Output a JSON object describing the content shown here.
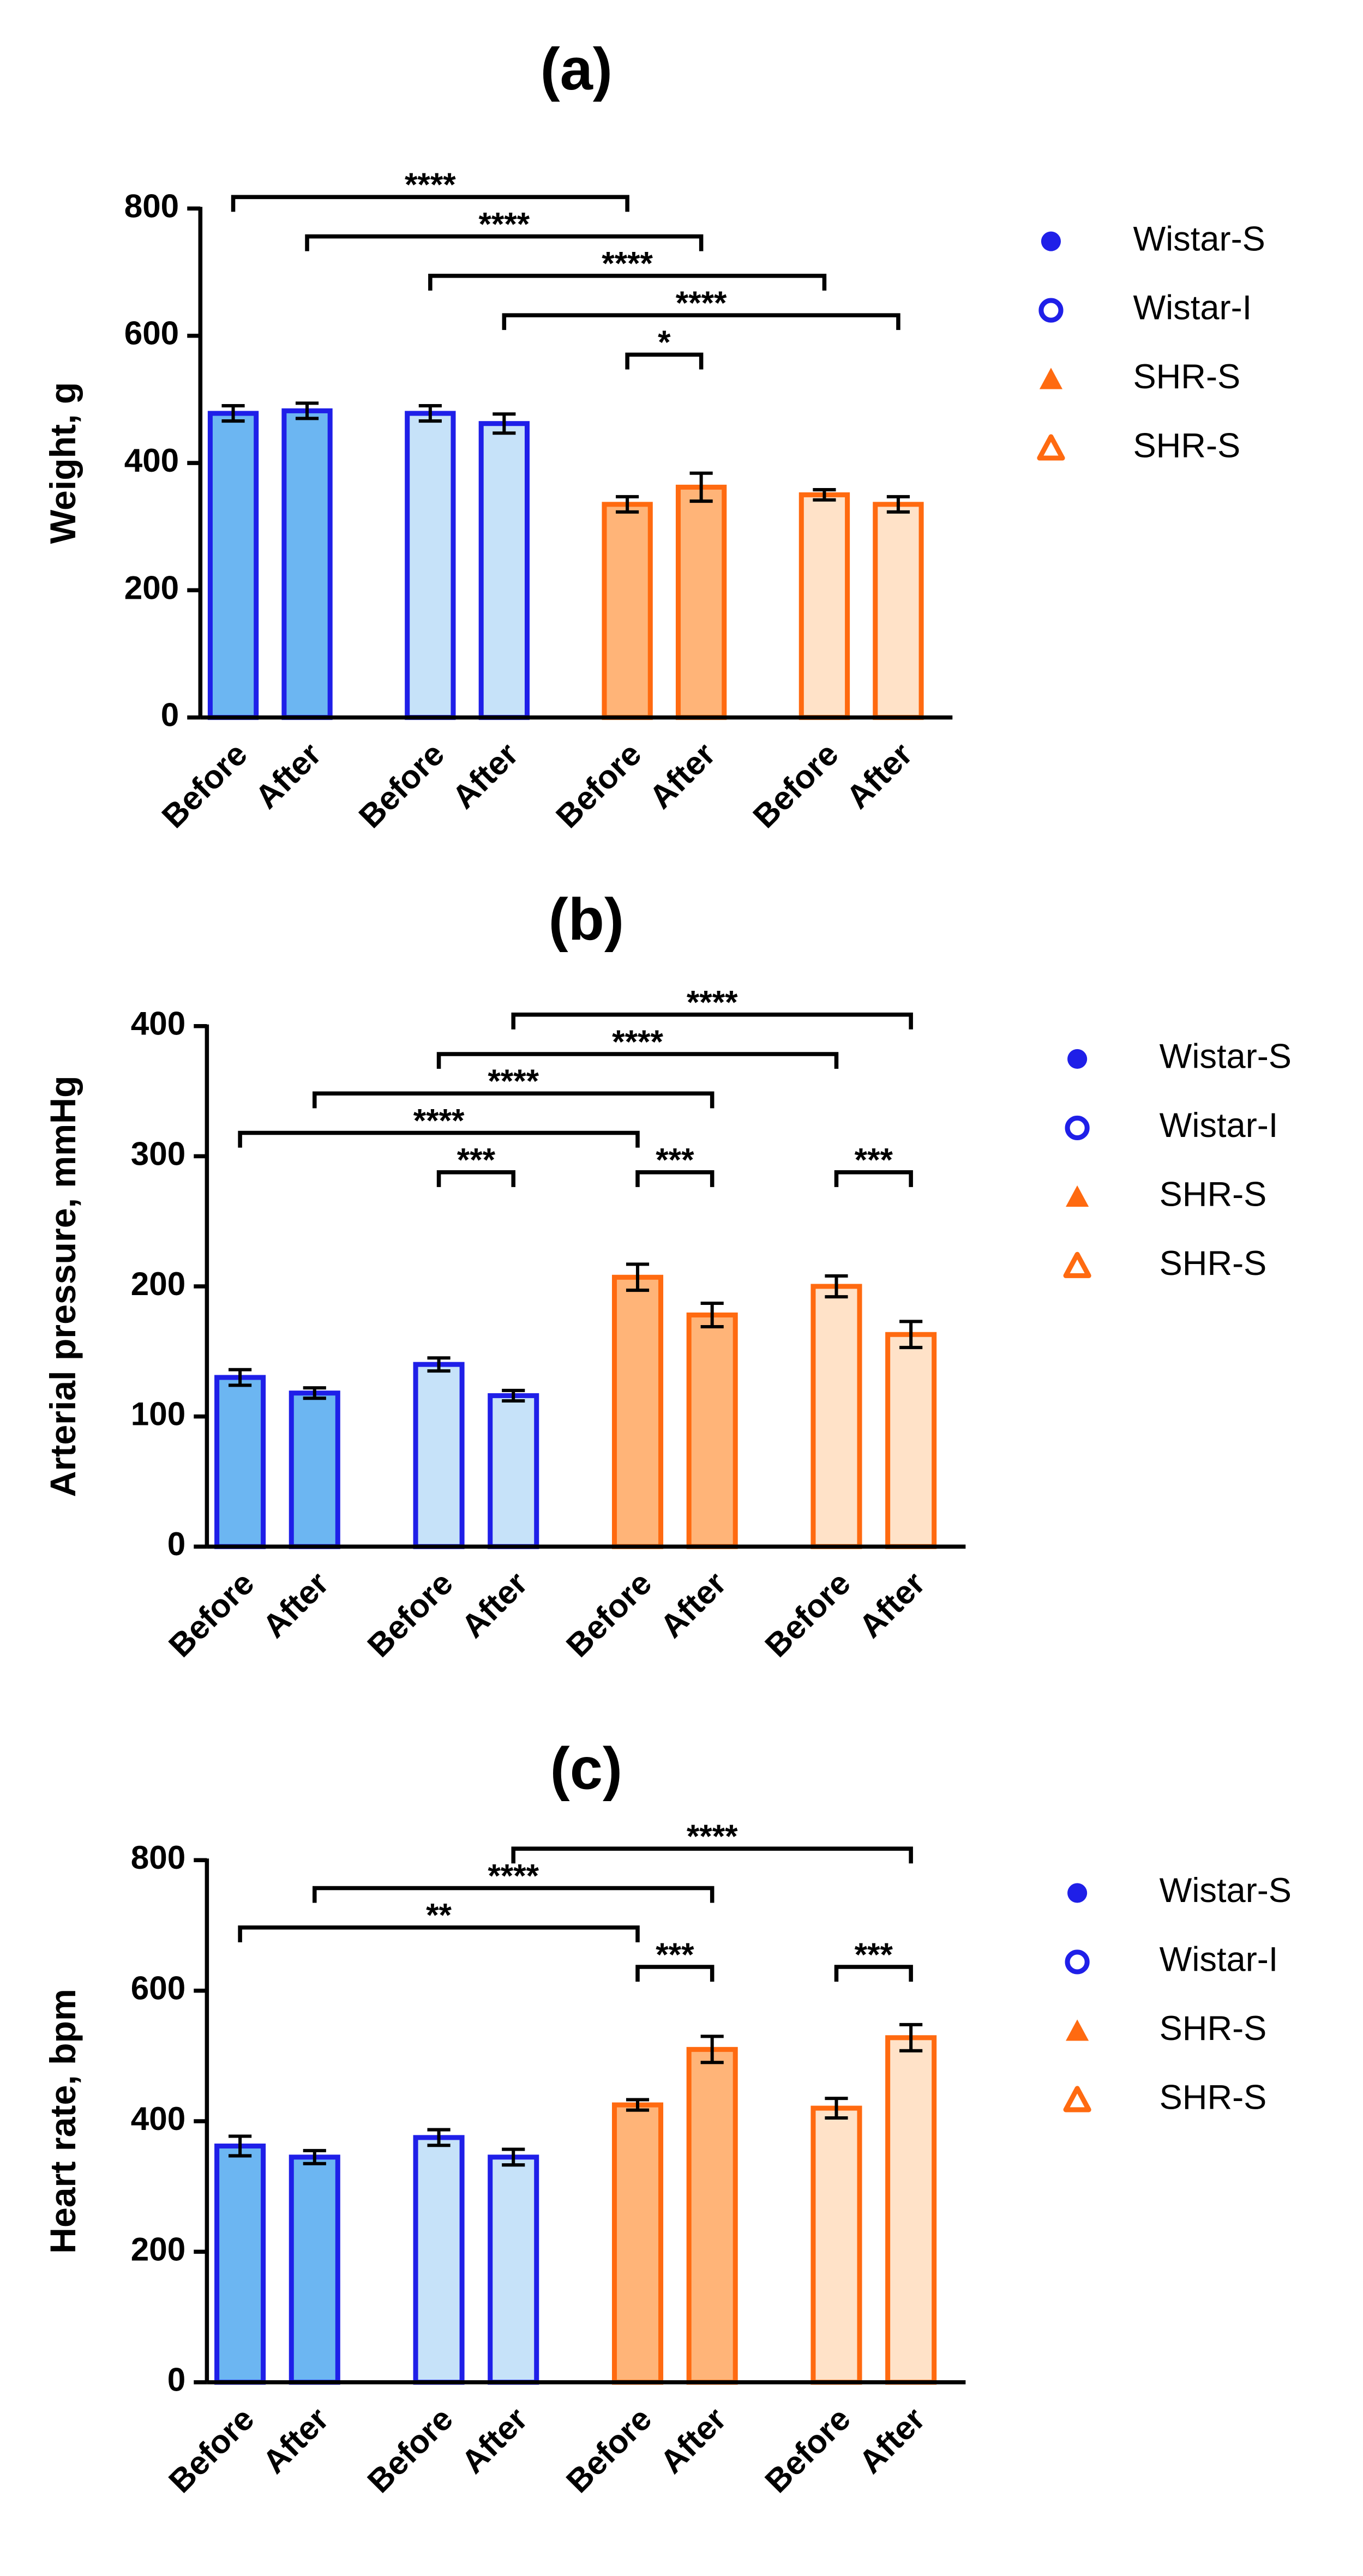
{
  "chart_data": [
    {
      "type": "bar",
      "title": "(a)",
      "y_label": "Weight, g",
      "categories": [
        "Before",
        "After"
      ],
      "ylim": [
        0,
        800
      ],
      "yticks": [
        0,
        200,
        400,
        600,
        800
      ],
      "series": [
        {
          "name": "Wistar-S",
          "color": "#1f1fe8",
          "fill": "#6cb6f2",
          "marker": "circle",
          "values": [
            478,
            482
          ],
          "errors": [
            12,
            12
          ]
        },
        {
          "name": "Wistar-I",
          "color": "#1f1fe8",
          "fill": "#c6e2f9",
          "marker": "circle-open",
          "values": [
            478,
            462
          ],
          "errors": [
            12,
            15
          ]
        },
        {
          "name": "SHR-S",
          "color": "#ff6a10",
          "fill": "#ffb478",
          "marker": "triangle",
          "values": [
            335,
            362
          ],
          "errors": [
            12,
            22
          ]
        },
        {
          "name": "SHR-S",
          "color": "#ff6a10",
          "fill": "#ffe2c8",
          "marker": "triangle-open",
          "values": [
            350,
            335
          ],
          "errors": [
            8,
            12
          ]
        }
      ],
      "annotations": [
        {
          "from": 0,
          "to": 4,
          "label": "****"
        },
        {
          "from": 1,
          "to": 5,
          "label": "****"
        },
        {
          "from": 2,
          "to": 6,
          "label": "****"
        },
        {
          "from": 3,
          "to": 7,
          "label": "****"
        },
        {
          "from": 4,
          "to": 5,
          "label": "*"
        }
      ]
    },
    {
      "type": "bar",
      "title": "(b)",
      "y_label": "Arterial pressure, mmHg",
      "categories": [
        "Before",
        "After"
      ],
      "ylim": [
        0,
        400
      ],
      "yticks": [
        0,
        100,
        200,
        300,
        400
      ],
      "series": [
        {
          "name": "Wistar-S",
          "color": "#1f1fe8",
          "fill": "#6cb6f2",
          "marker": "circle",
          "values": [
            130,
            118
          ],
          "errors": [
            6,
            4
          ]
        },
        {
          "name": "Wistar-I",
          "color": "#1f1fe8",
          "fill": "#c6e2f9",
          "marker": "circle-open",
          "values": [
            140,
            116
          ],
          "errors": [
            5,
            4
          ]
        },
        {
          "name": "SHR-S",
          "color": "#ff6a10",
          "fill": "#ffb478",
          "marker": "triangle",
          "values": [
            207,
            178
          ],
          "errors": [
            10,
            9
          ]
        },
        {
          "name": "SHR-S",
          "color": "#ff6a10",
          "fill": "#ffe2c8",
          "marker": "triangle-open",
          "values": [
            200,
            163
          ],
          "errors": [
            8,
            10
          ]
        }
      ],
      "annotations": [
        {
          "from": 3,
          "to": 7,
          "label": "****"
        },
        {
          "from": 2,
          "to": 6,
          "label": "****"
        },
        {
          "from": 1,
          "to": 5,
          "label": "****"
        },
        {
          "from": 0,
          "to": 4,
          "label": "****"
        },
        {
          "from": 2,
          "to": 3,
          "label": "***"
        },
        {
          "from": 4,
          "to": 5,
          "label": "***"
        },
        {
          "from": 6,
          "to": 7,
          "label": "***"
        }
      ]
    },
    {
      "type": "bar",
      "title": "(c)",
      "y_label": "Heart rate, bpm",
      "categories": [
        "Before",
        "After"
      ],
      "ylim": [
        0,
        800
      ],
      "yticks": [
        0,
        200,
        400,
        600,
        800
      ],
      "series": [
        {
          "name": "Wistar-S",
          "color": "#1f1fe8",
          "fill": "#6cb6f2",
          "marker": "circle",
          "values": [
            362,
            345
          ],
          "errors": [
            15,
            10
          ]
        },
        {
          "name": "Wistar-I",
          "color": "#1f1fe8",
          "fill": "#c6e2f9",
          "marker": "circle-open",
          "values": [
            375,
            345
          ],
          "errors": [
            12,
            12
          ]
        },
        {
          "name": "SHR-S",
          "color": "#ff6a10",
          "fill": "#ffb478",
          "marker": "triangle",
          "values": [
            425,
            510
          ],
          "errors": [
            8,
            20
          ]
        },
        {
          "name": "SHR-S",
          "color": "#ff6a10",
          "fill": "#ffe2c8",
          "marker": "triangle-open",
          "values": [
            420,
            528
          ],
          "errors": [
            15,
            20
          ]
        }
      ],
      "annotations": [
        {
          "from": 3,
          "to": 7,
          "label": "****"
        },
        {
          "from": 1,
          "to": 5,
          "label": "****"
        },
        {
          "from": 0,
          "to": 4,
          "label": "**"
        },
        {
          "from": 4,
          "to": 5,
          "label": "***"
        },
        {
          "from": 6,
          "to": 7,
          "label": "***"
        }
      ]
    }
  ]
}
